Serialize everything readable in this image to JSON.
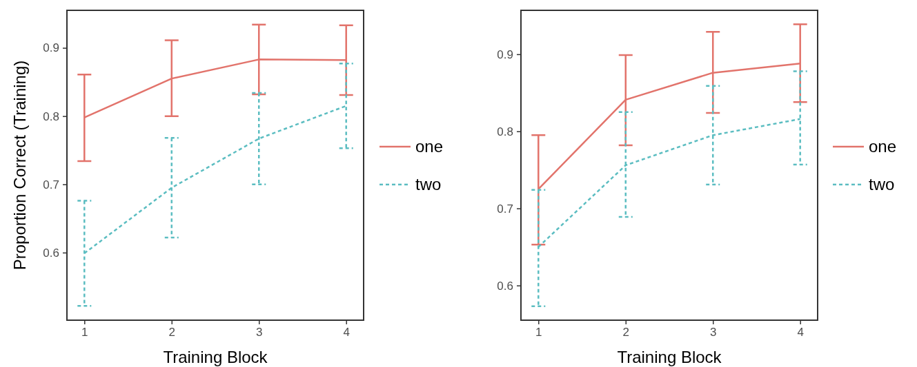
{
  "chart_data": [
    {
      "type": "line",
      "xlabel": "Training Block",
      "ylabel": "Proportion Correct (Training)",
      "x": [
        1,
        2,
        3,
        4
      ],
      "xlim": [
        0.8,
        4.2
      ],
      "xticks": [
        1,
        2,
        3,
        4
      ],
      "ylim": [
        0.501,
        0.955
      ],
      "yticks": [
        0.6,
        0.7,
        0.8,
        0.9
      ],
      "grid": false,
      "legend": "right",
      "marker": "none",
      "series": [
        {
          "name": "one",
          "color": "#e2736b",
          "line_style": "solid",
          "values": [
            0.798,
            0.855,
            0.883,
            0.882
          ],
          "errors": [
            [
              0.734,
              0.861
            ],
            [
              0.8,
              0.911
            ],
            [
              0.832,
              0.934
            ],
            [
              0.831,
              0.933
            ]
          ]
        },
        {
          "name": "two",
          "color": "#5bbdc1",
          "line_style": "dashed",
          "values": [
            0.599,
            0.695,
            0.767,
            0.815
          ],
          "errors": [
            [
              0.522,
              0.676
            ],
            [
              0.622,
              0.768
            ],
            [
              0.7,
              0.834
            ],
            [
              0.753,
              0.877
            ]
          ]
        }
      ]
    },
    {
      "type": "line",
      "xlabel": "Training Block",
      "x": [
        1,
        2,
        3,
        4
      ],
      "xlim": [
        0.8,
        4.2
      ],
      "xticks": [
        1,
        2,
        3,
        4
      ],
      "ylim": [
        0.555,
        0.957
      ],
      "yticks": [
        0.6,
        0.7,
        0.8,
        0.9
      ],
      "grid": false,
      "legend": "right",
      "marker": "none",
      "series": [
        {
          "name": "one",
          "color": "#e2736b",
          "line_style": "solid",
          "values": [
            0.725,
            0.841,
            0.876,
            0.888
          ],
          "errors": [
            [
              0.653,
              0.795
            ],
            [
              0.782,
              0.899
            ],
            [
              0.824,
              0.929
            ],
            [
              0.838,
              0.939
            ]
          ]
        },
        {
          "name": "two",
          "color": "#5bbdc1",
          "line_style": "dashed",
          "values": [
            0.65,
            0.756,
            0.795,
            0.816
          ],
          "errors": [
            [
              0.573,
              0.724
            ],
            [
              0.689,
              0.825
            ],
            [
              0.731,
              0.859
            ],
            [
              0.757,
              0.878
            ]
          ]
        }
      ]
    }
  ]
}
